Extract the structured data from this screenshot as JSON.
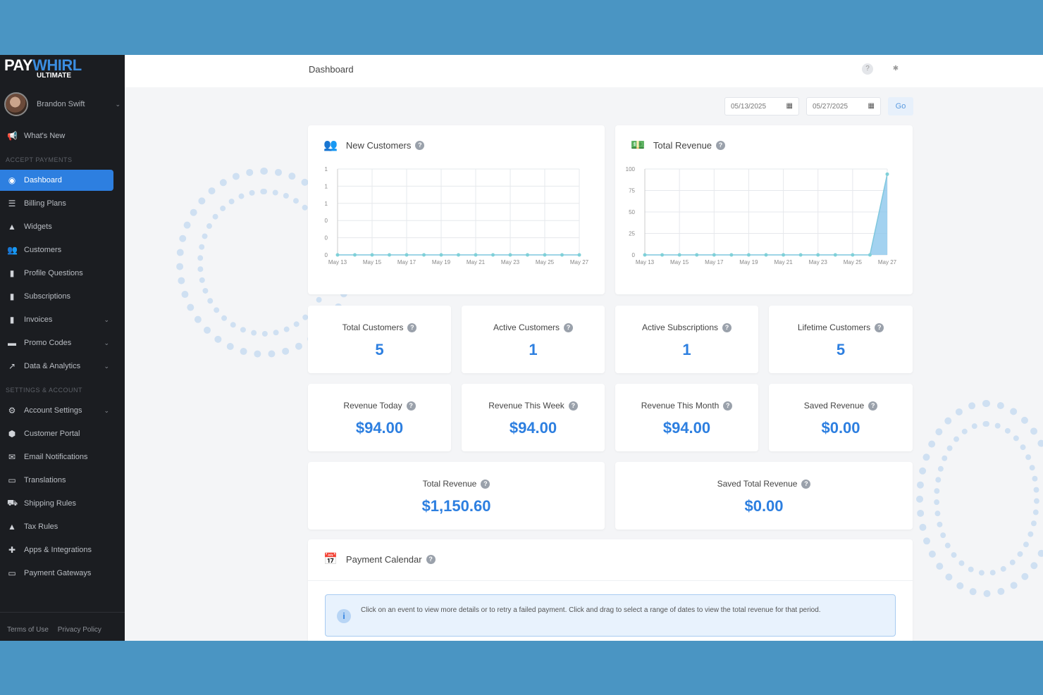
{
  "app": {
    "logo_pay": "PAY",
    "logo_whirl": "WHIRL",
    "logo_sub": "ULTIMATE",
    "brand_color": "#2d7fe0"
  },
  "user": {
    "name": "Brandon Swift"
  },
  "sidebar": {
    "whats_new": {
      "label": "What's New",
      "icon": "megaphone-icon"
    },
    "section1": "ACCEPT PAYMENTS",
    "items1": [
      {
        "label": "Dashboard",
        "icon": "dashboard-icon",
        "active": true
      },
      {
        "label": "Billing Plans",
        "icon": "list-icon"
      },
      {
        "label": "Widgets",
        "icon": "widgets-icon"
      },
      {
        "label": "Customers",
        "icon": "users-icon"
      },
      {
        "label": "Profile Questions",
        "icon": "clipboard-icon"
      },
      {
        "label": "Subscriptions",
        "icon": "subscriptions-icon"
      },
      {
        "label": "Invoices",
        "icon": "invoice-icon",
        "chevron": true
      },
      {
        "label": "Promo Codes",
        "icon": "tag-icon",
        "chevron": true
      },
      {
        "label": "Data & Analytics",
        "icon": "chart-icon",
        "chevron": true
      }
    ],
    "section2": "SETTINGS & ACCOUNT",
    "items2": [
      {
        "label": "Account Settings",
        "icon": "gear-icon",
        "chevron": true
      },
      {
        "label": "Customer Portal",
        "icon": "portal-icon"
      },
      {
        "label": "Email Notifications",
        "icon": "email-icon"
      },
      {
        "label": "Translations",
        "icon": "translate-icon"
      },
      {
        "label": "Shipping Rules",
        "icon": "truck-icon"
      },
      {
        "label": "Tax Rules",
        "icon": "tax-icon"
      },
      {
        "label": "Apps & Integrations",
        "icon": "puzzle-icon"
      },
      {
        "label": "Payment Gateways",
        "icon": "credit-card-icon"
      }
    ],
    "footer": {
      "terms": "Terms of Use",
      "privacy": "Privacy Policy"
    }
  },
  "header": {
    "title": "Dashboard"
  },
  "filters": {
    "start_date": "05/13/2025",
    "end_date": "05/27/2025",
    "go_label": "Go"
  },
  "charts_meta": {
    "new_customers": {
      "title": "New Customers"
    },
    "total_revenue": {
      "title": "Total Revenue"
    }
  },
  "chart_data": [
    {
      "type": "line",
      "title": "New Customers",
      "x": [
        "May 13",
        "May 14",
        "May 15",
        "May 16",
        "May 17",
        "May 18",
        "May 19",
        "May 20",
        "May 21",
        "May 22",
        "May 23",
        "May 24",
        "May 25",
        "May 26",
        "May 27"
      ],
      "x_tick_labels": [
        "May 13",
        "May 15",
        "May 17",
        "May 19",
        "May 21",
        "May 23",
        "May 25",
        "May 27"
      ],
      "series": [
        {
          "values": [
            0,
            0,
            0,
            0,
            0,
            0,
            0,
            0,
            0,
            0,
            0,
            0,
            0,
            0,
            0
          ]
        }
      ],
      "y_ticks": [
        "1",
        "1",
        "1",
        "0",
        "0",
        "0"
      ],
      "ylim": [
        0,
        1
      ],
      "grid": true
    },
    {
      "type": "area",
      "title": "Total Revenue",
      "x": [
        "May 13",
        "May 14",
        "May 15",
        "May 16",
        "May 17",
        "May 18",
        "May 19",
        "May 20",
        "May 21",
        "May 22",
        "May 23",
        "May 24",
        "May 25",
        "May 26",
        "May 27"
      ],
      "x_tick_labels": [
        "May 13",
        "May 15",
        "May 17",
        "May 19",
        "May 21",
        "May 23",
        "May 25",
        "May 27"
      ],
      "series": [
        {
          "values": [
            0,
            0,
            0,
            0,
            0,
            0,
            0,
            0,
            0,
            0,
            0,
            0,
            0,
            0,
            94
          ]
        }
      ],
      "y_ticks": [
        "100",
        "75",
        "50",
        "25",
        "0"
      ],
      "ylim": [
        0,
        100
      ],
      "grid": true
    }
  ],
  "stats": [
    {
      "label": "Total Customers",
      "value": "5"
    },
    {
      "label": "Active Customers",
      "value": "1"
    },
    {
      "label": "Active Subscriptions",
      "value": "1"
    },
    {
      "label": "Lifetime Customers",
      "value": "5"
    },
    {
      "label": "Revenue Today",
      "value": "$94.00"
    },
    {
      "label": "Revenue This Week",
      "value": "$94.00"
    },
    {
      "label": "Revenue This Month",
      "value": "$94.00"
    },
    {
      "label": "Saved Revenue",
      "value": "$0.00"
    },
    {
      "label": "Total Revenue",
      "value": "$1,150.60"
    },
    {
      "label": "Saved Total Revenue",
      "value": "$0.00"
    }
  ],
  "calendar": {
    "title": "Payment Calendar",
    "info": "Click on an event to view more details or to retry a failed payment. Click and drag to select a range of dates to view the total revenue for that period."
  }
}
